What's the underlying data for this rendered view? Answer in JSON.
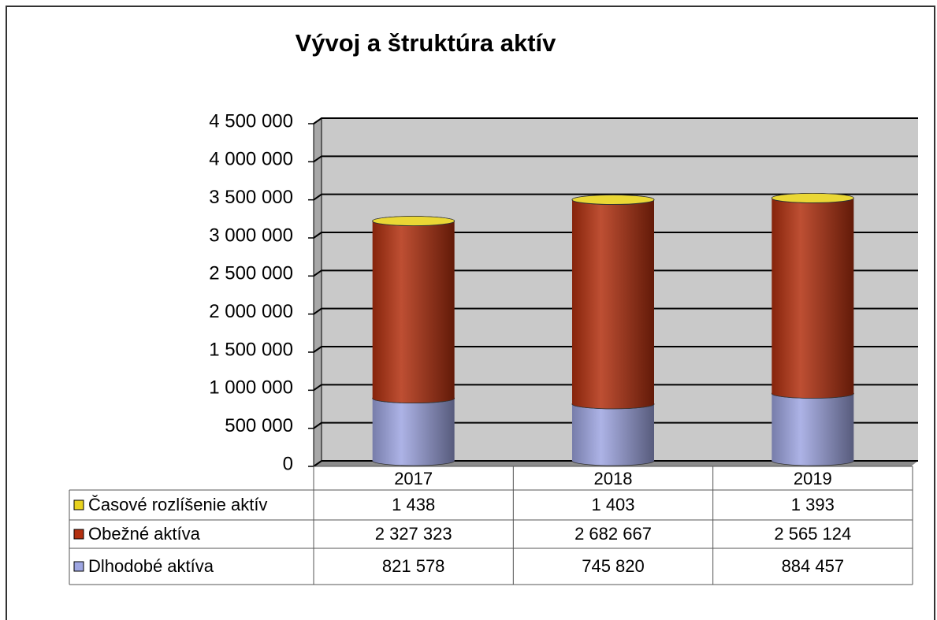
{
  "chart_data": {
    "type": "bar",
    "title": "Vývoj a štruktúra aktív",
    "categories": [
      "2017",
      "2018",
      "2019"
    ],
    "series": [
      {
        "name": "Časové rozlíšenie aktív",
        "color": "#e8d21e",
        "values": [
          1438,
          1403,
          1393
        ],
        "value_labels": [
          "1 438",
          "1 403",
          "1 393"
        ]
      },
      {
        "name": "Obežné aktíva",
        "color": "#b3300f",
        "values": [
          2327323,
          2682667,
          2565124
        ],
        "value_labels": [
          "2 327 323",
          "2 682 667",
          "2 565 124"
        ]
      },
      {
        "name": "Dlhodobé aktíva",
        "color": "#9ea6e2",
        "values": [
          821578,
          745820,
          884457
        ],
        "value_labels": [
          "821 578",
          "745 820",
          "884 457"
        ]
      }
    ],
    "ylim": [
      0,
      4500000
    ],
    "yticks": [
      0,
      {
        "value": 500000,
        "label": "500 000"
      },
      {
        "value": 1000000,
        "label": "1 000 000"
      },
      {
        "value": 1500000,
        "label": "1 500 000"
      },
      {
        "value": 2000000,
        "label": "2 000 000"
      },
      {
        "value": 2500000,
        "label": "2 500 000"
      },
      {
        "value": 3000000,
        "label": "3 000 000"
      },
      {
        "value": 3500000,
        "label": "3 500 000"
      },
      {
        "value": 4000000,
        "label": "4 000 000"
      },
      {
        "value": 4500000,
        "label": "4 500 000"
      }
    ],
    "grid": true,
    "stacked": true
  }
}
